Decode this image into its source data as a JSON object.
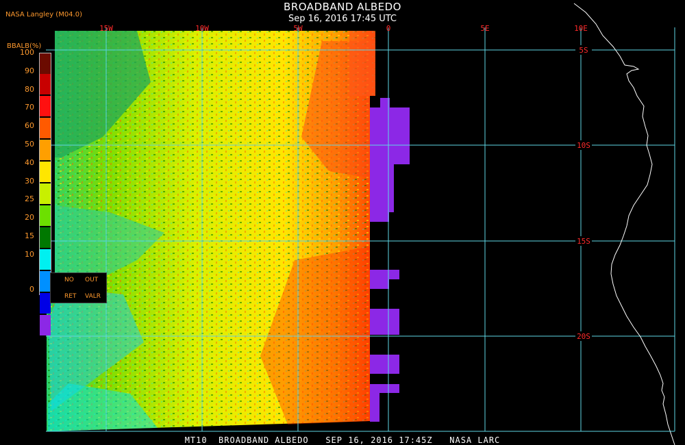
{
  "header": {
    "title": "BROADBAND ALBEDO",
    "subtitle": "Sep 16, 2016 17:45 UTC",
    "agency": "NASA Langley (M04.0)"
  },
  "footer": {
    "text": "MT10  BROADBAND ALBEDO   SEP 16, 2016 17:45Z   NASA LARC"
  },
  "legend": {
    "title": "BBALB(%)",
    "ticks": [
      "100",
      "90",
      "80",
      "70",
      "60",
      "50",
      "40",
      "30",
      "25",
      "20",
      "15",
      "10",
      "0"
    ],
    "colors": [
      "#6b0b00",
      "#c80000",
      "#ff1010",
      "#ff5a00",
      "#ff9f00",
      "#ffe600",
      "#c8f000",
      "#6ce000",
      "#007800",
      "#00f0f0",
      "#0090ff",
      "#0000e6",
      "#8c28e6"
    ],
    "no_retrieval": {
      "line1_left": "NO",
      "line1_right": "OUT",
      "line2_left": "RET",
      "line2_right": "VALR"
    }
  },
  "map": {
    "lon_labels": [
      "15W",
      "10W",
      "5W",
      "0",
      "5E",
      "10E"
    ],
    "lat_labels": [
      "5S",
      "10S",
      "15S",
      "20S"
    ],
    "colors": {
      "grid": "#5fd7e6",
      "label": "#ff2a2a",
      "coast": "#ffffff",
      "missing": "#8c28e6",
      "background": "#000000"
    }
  }
}
